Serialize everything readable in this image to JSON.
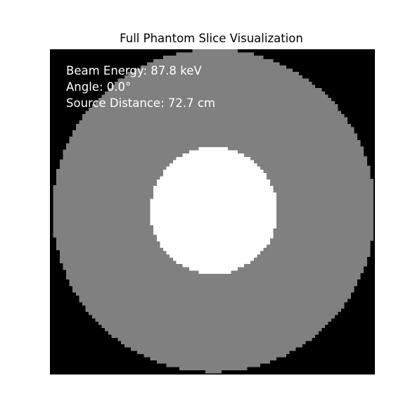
{
  "figure": {
    "title": "Full Phantom Slice Visualization"
  },
  "annotations": {
    "beam_energy": "Beam Energy: 87.8 keV",
    "angle": "Angle: 0.0°",
    "source_distance": "Source Distance: 72.7 cm"
  },
  "colors": {
    "background": "#000000",
    "outer_ring": "#808080",
    "inner_core": "#ffffff",
    "text": "#ffffff"
  }
}
